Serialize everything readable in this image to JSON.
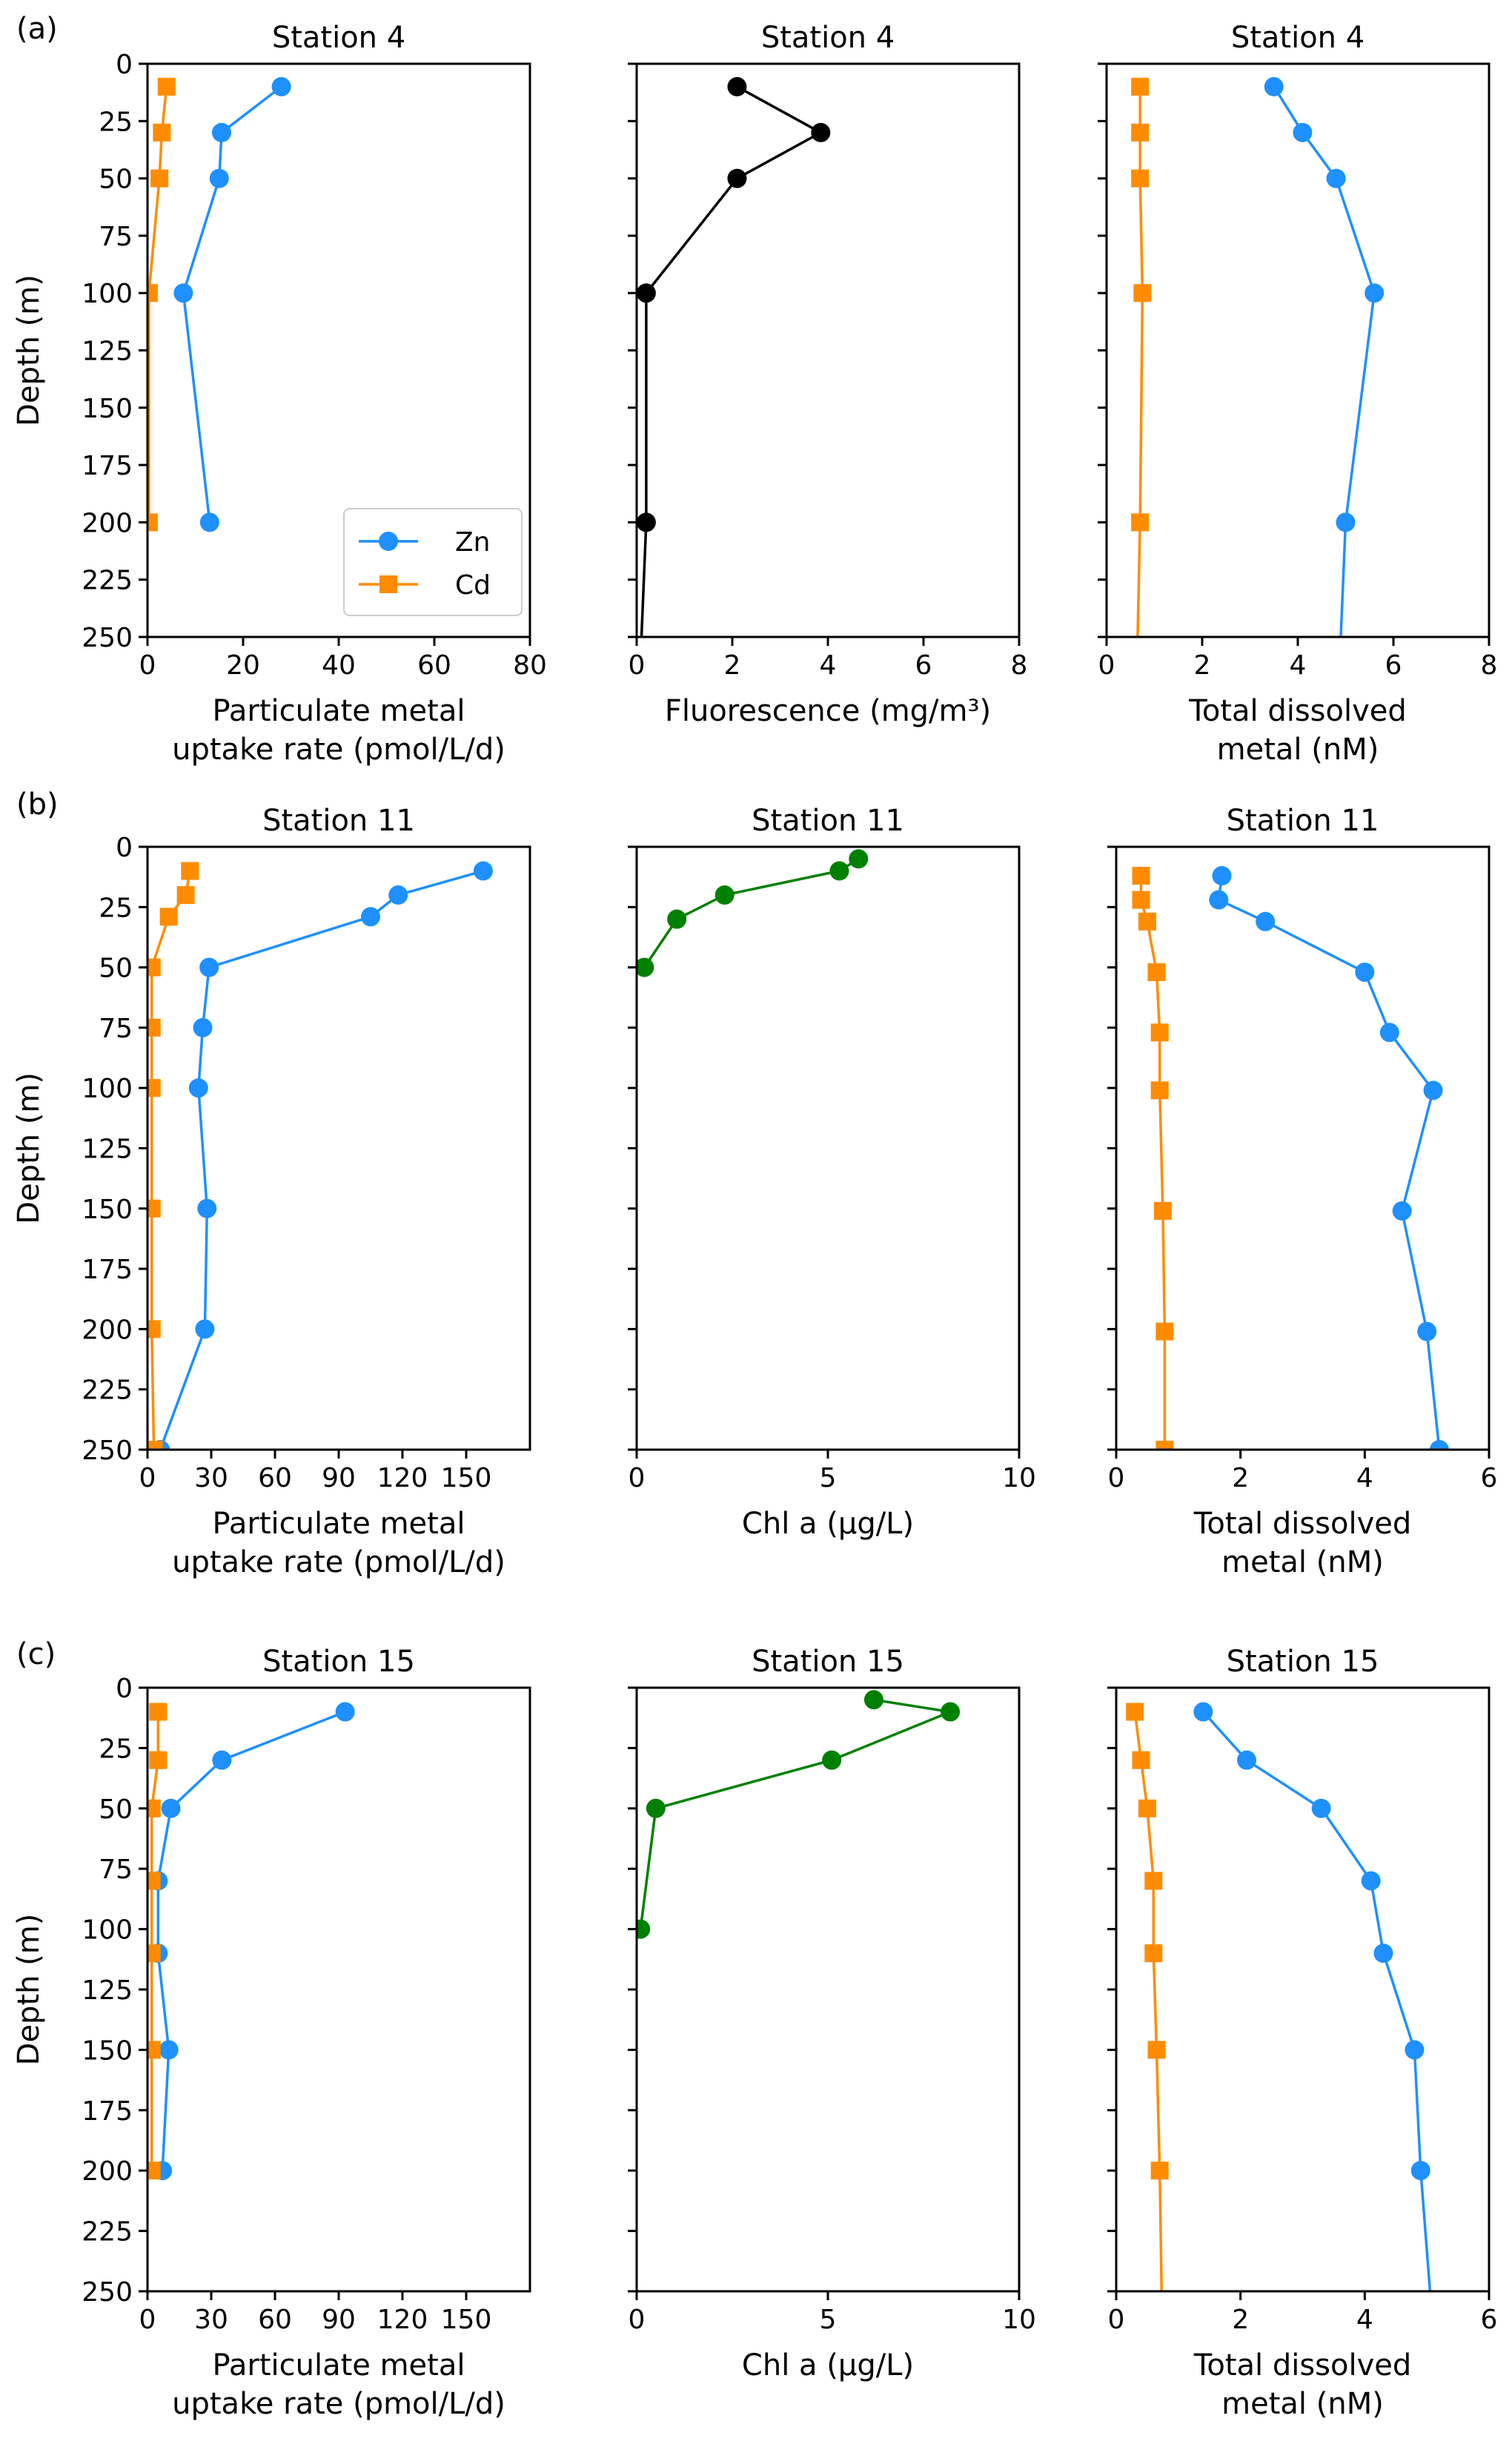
{
  "colors": {
    "zn": "#1E90FF",
    "cd": "#FF8C00",
    "fluor": "#000000",
    "chl": "#008000",
    "axis": "#000000"
  },
  "legend": {
    "zn": "Zn",
    "cd": "Cd"
  },
  "chart_data": [
    {
      "id": "a1",
      "panel": "(a)",
      "type": "line",
      "title": "Station 4",
      "xlabel": [
        "Particulate metal",
        "uptake rate (pmol/L/d)"
      ],
      "ylabel": "Depth (m)",
      "xlim": [
        0,
        80
      ],
      "ylim": [
        250,
        0
      ],
      "xticks": [
        "0",
        "20",
        "40",
        "60",
        "80"
      ],
      "xtick_values": [
        0,
        20,
        40,
        60,
        80
      ],
      "yticks": [
        "0",
        "25",
        "50",
        "75",
        "100",
        "125",
        "150",
        "175",
        "200",
        "225",
        "250"
      ],
      "ytick_values": [
        0,
        25,
        50,
        75,
        100,
        125,
        150,
        175,
        200,
        225,
        250
      ],
      "show_ytick_labels": true,
      "legend": true,
      "series": [
        {
          "name": "Zn",
          "marker": "circle",
          "color_key": "zn",
          "points": [
            [
              28,
              10
            ],
            [
              15.5,
              30
            ],
            [
              15,
              50
            ],
            [
              7.5,
              100
            ],
            [
              13,
              200
            ]
          ]
        },
        {
          "name": "Cd",
          "marker": "square",
          "color_key": "cd",
          "points": [
            [
              4,
              10
            ],
            [
              3,
              30
            ],
            [
              2.5,
              50
            ],
            [
              0.3,
              100
            ],
            [
              0.3,
              200
            ]
          ]
        }
      ]
    },
    {
      "id": "a2",
      "type": "line",
      "title": "Station 4",
      "xlabel": [
        "Fluorescence (mg/m³)"
      ],
      "xlim": [
        0,
        8
      ],
      "ylim": [
        250,
        0
      ],
      "xticks": [
        "0",
        "2",
        "4",
        "6",
        "8"
      ],
      "xtick_values": [
        0,
        2,
        4,
        6,
        8
      ],
      "ytick_values": [
        0,
        25,
        50,
        75,
        100,
        125,
        150,
        175,
        200,
        225,
        250
      ],
      "show_ytick_labels": false,
      "series": [
        {
          "name": "Fluorescence",
          "marker": "circle",
          "color_key": "fluor",
          "points": [
            [
              2.1,
              10
            ],
            [
              3.85,
              30
            ],
            [
              2.1,
              50
            ],
            [
              0.2,
              100
            ],
            [
              0.2,
              200
            ]
          ],
          "line_extension": [
            0.1,
            250
          ]
        }
      ]
    },
    {
      "id": "a3",
      "type": "line",
      "title": "Station 4",
      "xlabel": [
        "Total dissolved",
        "metal (nM)"
      ],
      "xlim": [
        0,
        8
      ],
      "ylim": [
        250,
        0
      ],
      "xticks": [
        "0",
        "2",
        "4",
        "6",
        "8"
      ],
      "xtick_values": [
        0,
        2,
        4,
        6,
        8
      ],
      "ytick_values": [
        0,
        25,
        50,
        75,
        100,
        125,
        150,
        175,
        200,
        225,
        250
      ],
      "show_ytick_labels": false,
      "series": [
        {
          "name": "Zn",
          "marker": "circle",
          "color_key": "zn",
          "points": [
            [
              3.5,
              10
            ],
            [
              4.1,
              30
            ],
            [
              4.8,
              50
            ],
            [
              5.6,
              100
            ],
            [
              5,
              200
            ]
          ],
          "line_extension": [
            4.9,
            250
          ]
        },
        {
          "name": "Cd",
          "marker": "square",
          "color_key": "cd",
          "points": [
            [
              0.7,
              10
            ],
            [
              0.7,
              30
            ],
            [
              0.7,
              50
            ],
            [
              0.75,
              100
            ],
            [
              0.7,
              200
            ]
          ],
          "line_extension": [
            0.65,
            250
          ]
        }
      ]
    },
    {
      "id": "b1",
      "panel": "(b)",
      "type": "line",
      "title": "Station 11",
      "xlabel": [
        "Particulate metal",
        "uptake rate (pmol/L/d)"
      ],
      "ylabel": "Depth (m)",
      "xlim": [
        0,
        180
      ],
      "ylim": [
        250,
        0
      ],
      "xticks": [
        "0",
        "30",
        "60",
        "90",
        "120",
        "150"
      ],
      "xtick_values": [
        0,
        30,
        60,
        90,
        120,
        150
      ],
      "yticks": [
        "0",
        "25",
        "50",
        "75",
        "100",
        "125",
        "150",
        "175",
        "200",
        "225",
        "250"
      ],
      "ytick_values": [
        0,
        25,
        50,
        75,
        100,
        125,
        150,
        175,
        200,
        225,
        250
      ],
      "show_ytick_labels": true,
      "series": [
        {
          "name": "Zn",
          "marker": "circle",
          "color_key": "zn",
          "points": [
            [
              158,
              10
            ],
            [
              118,
              20
            ],
            [
              105,
              29
            ],
            [
              29,
              50
            ],
            [
              26,
              75
            ],
            [
              24,
              100
            ],
            [
              28,
              150
            ],
            [
              27,
              200
            ],
            [
              6,
              250
            ]
          ]
        },
        {
          "name": "Cd",
          "marker": "square",
          "color_key": "cd",
          "points": [
            [
              20,
              10
            ],
            [
              18,
              20
            ],
            [
              10,
              29
            ],
            [
              2,
              50
            ],
            [
              2,
              75
            ],
            [
              2,
              100
            ],
            [
              2,
              150
            ],
            [
              2,
              200
            ],
            [
              3,
              250
            ]
          ]
        }
      ]
    },
    {
      "id": "b2",
      "type": "line",
      "title": "Station 11",
      "xlabel": [
        "Chl a (µg/L)"
      ],
      "xlim": [
        0,
        10
      ],
      "ylim": [
        250,
        0
      ],
      "xticks": [
        "0",
        "5",
        "10"
      ],
      "xtick_values": [
        0,
        5,
        10
      ],
      "ytick_values": [
        0,
        25,
        50,
        75,
        100,
        125,
        150,
        175,
        200,
        225,
        250
      ],
      "show_ytick_labels": false,
      "series": [
        {
          "name": "Chl a",
          "marker": "circle",
          "color_key": "chl",
          "points": [
            [
              5.8,
              5
            ],
            [
              5.3,
              10
            ],
            [
              2.3,
              20
            ],
            [
              1.05,
              30
            ],
            [
              0.2,
              50
            ]
          ]
        }
      ]
    },
    {
      "id": "b3",
      "type": "line",
      "title": "Station 11",
      "xlabel": [
        "Total dissolved",
        "metal (nM)"
      ],
      "xlim": [
        0,
        6
      ],
      "ylim": [
        250,
        0
      ],
      "xticks": [
        "0",
        "2",
        "4",
        "6"
      ],
      "xtick_values": [
        0,
        2,
        4,
        6
      ],
      "ytick_values": [
        0,
        25,
        50,
        75,
        100,
        125,
        150,
        175,
        200,
        225,
        250
      ],
      "show_ytick_labels": false,
      "series": [
        {
          "name": "Zn",
          "marker": "circle",
          "color_key": "zn",
          "points": [
            [
              1.7,
              12
            ],
            [
              1.65,
              22
            ],
            [
              2.4,
              31
            ],
            [
              4,
              52
            ],
            [
              4.4,
              77
            ],
            [
              5.1,
              101
            ],
            [
              4.6,
              151
            ],
            [
              5,
              201
            ],
            [
              5.2,
              250
            ]
          ]
        },
        {
          "name": "Cd",
          "marker": "square",
          "color_key": "cd",
          "points": [
            [
              0.4,
              12
            ],
            [
              0.4,
              22
            ],
            [
              0.5,
              31
            ],
            [
              0.65,
              52
            ],
            [
              0.7,
              77
            ],
            [
              0.7,
              101
            ],
            [
              0.75,
              151
            ],
            [
              0.78,
              201
            ],
            [
              0.78,
              250
            ]
          ]
        }
      ]
    },
    {
      "id": "c1",
      "panel": "(c)",
      "type": "line",
      "title": "Station 15",
      "xlabel": [
        "Particulate metal",
        "uptake rate (pmol/L/d)"
      ],
      "ylabel": "Depth (m)",
      "xlim": [
        0,
        180
      ],
      "ylim": [
        250,
        0
      ],
      "xticks": [
        "0",
        "30",
        "60",
        "90",
        "120",
        "150"
      ],
      "xtick_values": [
        0,
        30,
        60,
        90,
        120,
        150
      ],
      "yticks": [
        "0",
        "25",
        "50",
        "75",
        "100",
        "125",
        "150",
        "175",
        "200",
        "225",
        "250"
      ],
      "ytick_values": [
        0,
        25,
        50,
        75,
        100,
        125,
        150,
        175,
        200,
        225,
        250
      ],
      "show_ytick_labels": true,
      "series": [
        {
          "name": "Zn",
          "marker": "circle",
          "color_key": "zn",
          "points": [
            [
              93,
              10
            ],
            [
              35,
              30
            ],
            [
              11,
              50
            ],
            [
              5,
              80
            ],
            [
              5,
              110
            ],
            [
              10,
              150
            ],
            [
              7,
              200
            ]
          ]
        },
        {
          "name": "Cd",
          "marker": "square",
          "color_key": "cd",
          "points": [
            [
              5,
              10
            ],
            [
              5,
              30
            ],
            [
              2,
              50
            ],
            [
              2,
              80
            ],
            [
              2,
              110
            ],
            [
              2,
              150
            ],
            [
              2,
              200
            ]
          ]
        }
      ]
    },
    {
      "id": "c2",
      "type": "line",
      "title": "Station 15",
      "xlabel": [
        "Chl a (µg/L)"
      ],
      "xlim": [
        0,
        10
      ],
      "ylim": [
        250,
        0
      ],
      "xticks": [
        "0",
        "5",
        "10"
      ],
      "xtick_values": [
        0,
        5,
        10
      ],
      "ytick_values": [
        0,
        25,
        50,
        75,
        100,
        125,
        150,
        175,
        200,
        225,
        250
      ],
      "show_ytick_labels": false,
      "series": [
        {
          "name": "Chl a",
          "marker": "circle",
          "color_key": "chl",
          "points": [
            [
              6.2,
              5
            ],
            [
              8.2,
              10
            ],
            [
              5.1,
              30
            ],
            [
              0.5,
              50
            ],
            [
              0.1,
              100
            ]
          ]
        }
      ]
    },
    {
      "id": "c3",
      "type": "line",
      "title": "Station 15",
      "xlabel": [
        "Total dissolved",
        "metal (nM)"
      ],
      "xlim": [
        0,
        6
      ],
      "ylim": [
        250,
        0
      ],
      "xticks": [
        "0",
        "2",
        "4",
        "6"
      ],
      "xtick_values": [
        0,
        2,
        4,
        6
      ],
      "ytick_values": [
        0,
        25,
        50,
        75,
        100,
        125,
        150,
        175,
        200,
        225,
        250
      ],
      "show_ytick_labels": false,
      "series": [
        {
          "name": "Zn",
          "marker": "circle",
          "color_key": "zn",
          "points": [
            [
              1.4,
              10
            ],
            [
              2.1,
              30
            ],
            [
              3.3,
              50
            ],
            [
              4.1,
              80
            ],
            [
              4.3,
              110
            ],
            [
              4.8,
              150
            ],
            [
              4.9,
              200
            ]
          ],
          "line_extension": [
            5.05,
            250
          ]
        },
        {
          "name": "Cd",
          "marker": "square",
          "color_key": "cd",
          "points": [
            [
              0.3,
              10
            ],
            [
              0.4,
              30
            ],
            [
              0.5,
              50
            ],
            [
              0.6,
              80
            ],
            [
              0.6,
              110
            ],
            [
              0.65,
              150
            ],
            [
              0.7,
              200
            ]
          ],
          "line_extension": [
            0.73,
            250
          ]
        }
      ]
    }
  ]
}
